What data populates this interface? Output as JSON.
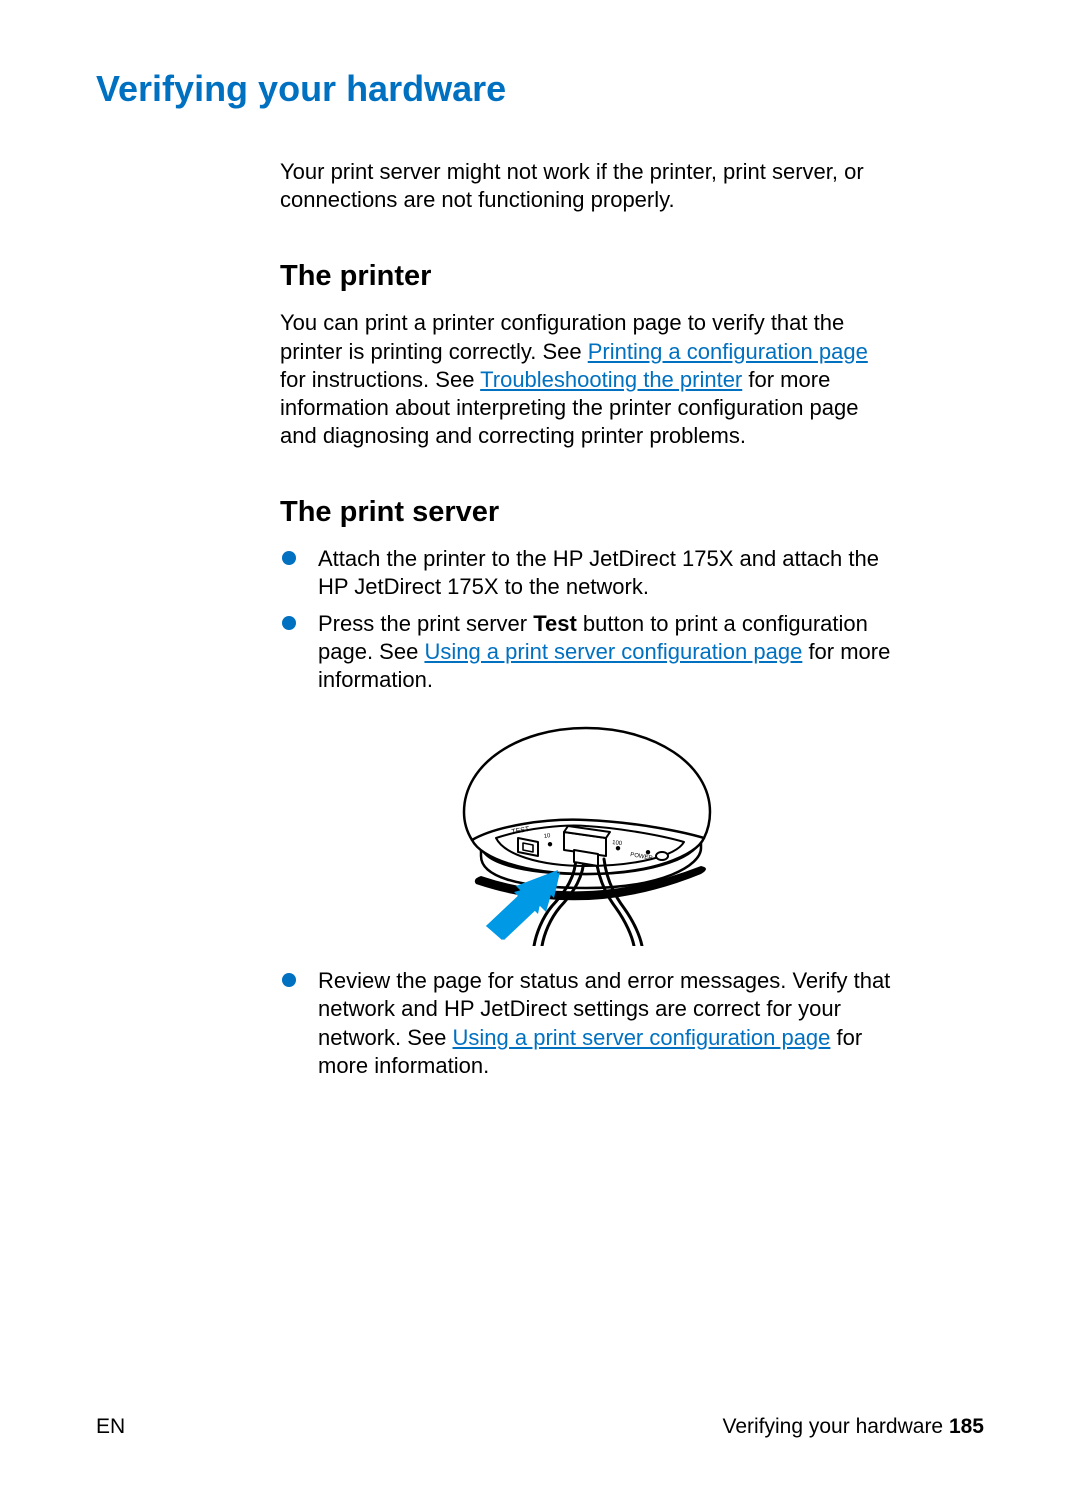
{
  "colors": {
    "h1": "#0070c0",
    "link": "#0070c0",
    "bullet": "#0070c0",
    "text": "#000000",
    "device_stroke": "#000000",
    "device_fill": "#ffffff",
    "arrow_fill": "#0099e5"
  },
  "header": {
    "title": "Verifying your hardware"
  },
  "intro": {
    "text": "Your print server might not work if the printer, print server, or connections are not functioning properly."
  },
  "section_printer": {
    "heading": "The printer",
    "p1_a": "You can print a printer configuration page to verify that the printer is printing correctly. See ",
    "p1_link1": "Printing a configuration page",
    "p1_b": " for instructions. See ",
    "p1_link2": "Troubleshooting the printer",
    "p1_c": " for more information about interpreting the printer configuration page and diagnosing and correcting printer problems."
  },
  "section_server": {
    "heading": "The print server",
    "b1": "Attach the printer to the HP JetDirect 175X and attach the HP JetDirect 175X to the network.",
    "b2_a": "Press the print server ",
    "b2_bold": "Test",
    "b2_b": " button to print a configuration page. See ",
    "b2_link": "Using a print server configuration page",
    "b2_c": " for more information.",
    "b3_a": "Review the page for status and error messages. Verify that network and HP JetDirect settings are correct for your network. See ",
    "b3_link": "Using a print server configuration page",
    "b3_b": " for more information."
  },
  "device_labels": {
    "test": "TEST",
    "ten": "10",
    "hundred": "100",
    "power": "POWER"
  },
  "footer": {
    "left": "EN",
    "right_text": "Verifying your hardware ",
    "page_no": "185"
  }
}
